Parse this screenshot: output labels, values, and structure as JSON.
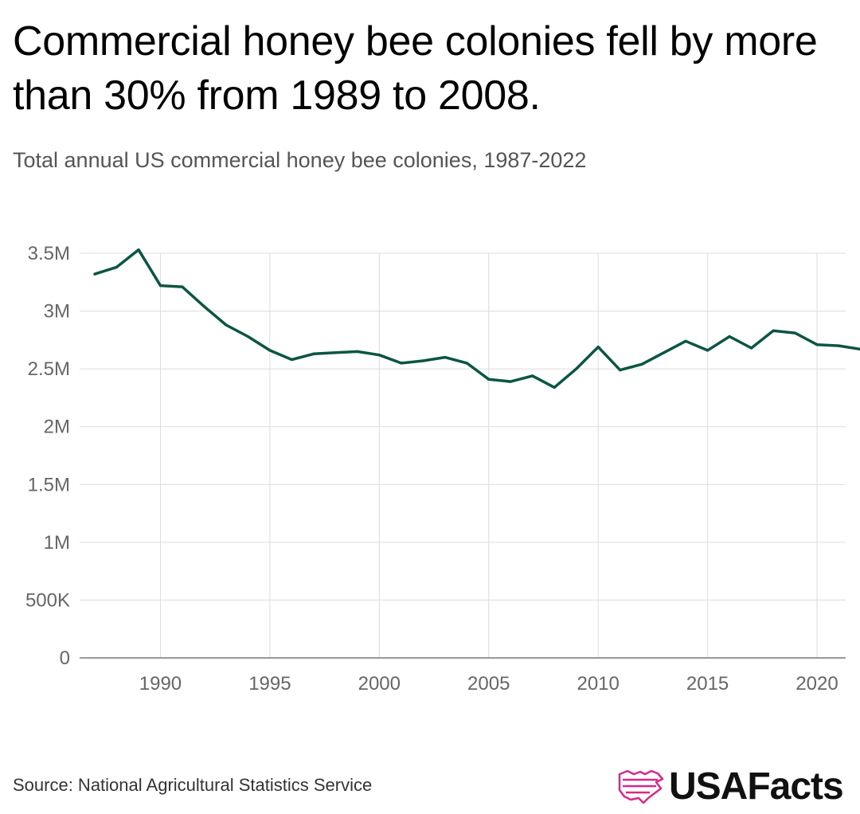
{
  "title": "Commercial honey bee colonies fell by more than 30% from 1989 to 2008.",
  "subtitle": "Total annual US commercial honey bee colonies, 1987-2022",
  "source": "Source: National Agricultural Statistics Service",
  "logo_text": "USAFacts",
  "colors": {
    "line": "#0b5544",
    "grid": "#dcdcdc",
    "axis": "#999999",
    "logo_accent": "#d8288a"
  },
  "chart_data": {
    "type": "line",
    "title": "Total annual US commercial honey bee colonies, 1987-2022",
    "xlabel": "",
    "ylabel": "",
    "xlim": [
      1987,
      2022
    ],
    "ylim": [
      0,
      3500000
    ],
    "grid": true,
    "x_ticks": [
      1990,
      1995,
      2000,
      2005,
      2010,
      2015,
      2020
    ],
    "x_tick_labels": [
      "1990",
      "1995",
      "2000",
      "2005",
      "2010",
      "2015",
      "2020"
    ],
    "y_ticks": [
      0,
      500000,
      1000000,
      1500000,
      2000000,
      2500000,
      3000000,
      3500000
    ],
    "y_tick_labels": [
      "0",
      "500K",
      "1M",
      "1.5M",
      "2M",
      "2.5M",
      "3M",
      "3.5M"
    ],
    "series": [
      {
        "name": "Commercial honey bee colonies",
        "x": [
          1987,
          1988,
          1989,
          1990,
          1991,
          1992,
          1993,
          1994,
          1995,
          1996,
          1997,
          1998,
          1999,
          2000,
          2001,
          2002,
          2003,
          2004,
          2005,
          2006,
          2007,
          2008,
          2009,
          2010,
          2011,
          2012,
          2013,
          2014,
          2015,
          2016,
          2017,
          2018,
          2019,
          2020,
          2021,
          2022
        ],
        "values": [
          3320000,
          3380000,
          3530000,
          3220000,
          3210000,
          3040000,
          2880000,
          2780000,
          2660000,
          2580000,
          2630000,
          2640000,
          2650000,
          2620000,
          2550000,
          2570000,
          2600000,
          2550000,
          2410000,
          2390000,
          2440000,
          2340000,
          2500000,
          2690000,
          2490000,
          2540000,
          2640000,
          2740000,
          2660000,
          2780000,
          2680000,
          2830000,
          2810000,
          2710000,
          2700000,
          2670000
        ]
      }
    ]
  }
}
